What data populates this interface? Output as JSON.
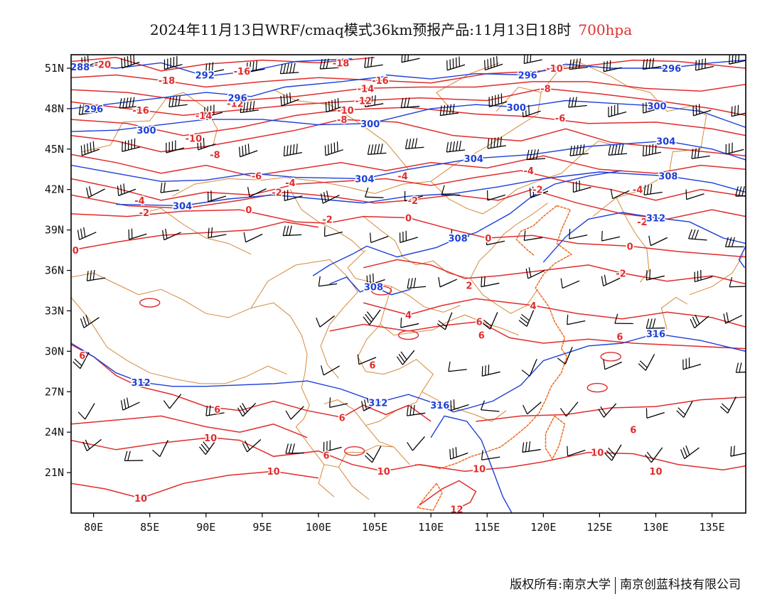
{
  "title": {
    "main": "2024年11月13日WRF/cmaq模式36km预报产品:11月13日18时",
    "level": "700hpa"
  },
  "colors": {
    "temperature_contour": "#e02c2c",
    "height_contour": "#1d3fd8",
    "border": "#d4893a",
    "coast": "#f06a1e",
    "wind_barb": "#000000"
  },
  "map": {
    "lon_range": [
      78,
      138
    ],
    "lat_range": [
      18,
      52
    ],
    "lat_ticks": [
      {
        "value": 21,
        "label": "21N"
      },
      {
        "value": 24,
        "label": "24N"
      },
      {
        "value": 27,
        "label": "27N"
      },
      {
        "value": 30,
        "label": "30N"
      },
      {
        "value": 33,
        "label": "33N"
      },
      {
        "value": 36,
        "label": "36N"
      },
      {
        "value": 39,
        "label": "39N"
      },
      {
        "value": 42,
        "label": "42N"
      },
      {
        "value": 45,
        "label": "45N"
      },
      {
        "value": 48,
        "label": "48N"
      },
      {
        "value": 51,
        "label": "51N"
      }
    ],
    "lon_ticks": [
      {
        "value": 80,
        "label": "80E"
      },
      {
        "value": 85,
        "label": "85E"
      },
      {
        "value": 90,
        "label": "90E"
      },
      {
        "value": 95,
        "label": "95E"
      },
      {
        "value": 100,
        "label": "100E"
      },
      {
        "value": 105,
        "label": "105E"
      },
      {
        "value": 110,
        "label": "110E"
      },
      {
        "value": 115,
        "label": "115E"
      },
      {
        "value": 120,
        "label": "120E"
      },
      {
        "value": 125,
        "label": "125E"
      },
      {
        "value": 130,
        "label": "130E"
      },
      {
        "value": 135,
        "label": "135E"
      }
    ],
    "temperature_labels": [
      {
        "text": "-20",
        "lon": 80.8,
        "lat": 51.3
      },
      {
        "text": "-18",
        "lon": 86.5,
        "lat": 50.1
      },
      {
        "text": "-16",
        "lon": 93.2,
        "lat": 50.8
      },
      {
        "text": "-18",
        "lon": 102.0,
        "lat": 51.4
      },
      {
        "text": "-16",
        "lon": 105.5,
        "lat": 50.1
      },
      {
        "text": "-14",
        "lon": 104.2,
        "lat": 49.5
      },
      {
        "text": "-12",
        "lon": 104.0,
        "lat": 48.6
      },
      {
        "text": "-10",
        "lon": 102.4,
        "lat": 47.9
      },
      {
        "text": "-8",
        "lon": 102.1,
        "lat": 47.2
      },
      {
        "text": "-16",
        "lon": 84.2,
        "lat": 47.9
      },
      {
        "text": "-14",
        "lon": 89.8,
        "lat": 47.5
      },
      {
        "text": "-12",
        "lon": 92.6,
        "lat": 48.4
      },
      {
        "text": "-10",
        "lon": 88.9,
        "lat": 45.8
      },
      {
        "text": "-8",
        "lon": 90.8,
        "lat": 44.6
      },
      {
        "text": "-6",
        "lon": 94.5,
        "lat": 43.0
      },
      {
        "text": "-4",
        "lon": 97.5,
        "lat": 42.5
      },
      {
        "text": "-4",
        "lon": 84.1,
        "lat": 41.2
      },
      {
        "text": "-2",
        "lon": 84.5,
        "lat": 40.3
      },
      {
        "text": "-2",
        "lon": 96.3,
        "lat": 41.8
      },
      {
        "text": "0",
        "lon": 93.8,
        "lat": 40.5
      },
      {
        "text": "-2",
        "lon": 100.8,
        "lat": 39.8
      },
      {
        "text": "-4",
        "lon": 107.5,
        "lat": 43.0
      },
      {
        "text": "-2",
        "lon": 108.4,
        "lat": 41.2
      },
      {
        "text": "0",
        "lon": 108.0,
        "lat": 39.9
      },
      {
        "text": "-10",
        "lon": 121.0,
        "lat": 51.0
      },
      {
        "text": "-8",
        "lon": 120.2,
        "lat": 49.5
      },
      {
        "text": "-6",
        "lon": 121.5,
        "lat": 47.3
      },
      {
        "text": "-4",
        "lon": 118.7,
        "lat": 43.4
      },
      {
        "text": "-2",
        "lon": 119.5,
        "lat": 42.0
      },
      {
        "text": "-4",
        "lon": 128.4,
        "lat": 42.0
      },
      {
        "text": "-2",
        "lon": 128.8,
        "lat": 39.6
      },
      {
        "text": "0",
        "lon": 115.1,
        "lat": 38.4
      },
      {
        "text": "0",
        "lon": 127.7,
        "lat": 37.8
      },
      {
        "text": "-2",
        "lon": 126.9,
        "lat": 35.8
      },
      {
        "text": "0",
        "lon": 78.4,
        "lat": 37.5
      },
      {
        "text": "2",
        "lon": 113.4,
        "lat": 34.9
      },
      {
        "text": "4",
        "lon": 108.0,
        "lat": 32.7
      },
      {
        "text": "4",
        "lon": 119.1,
        "lat": 33.4
      },
      {
        "text": "6",
        "lon": 114.3,
        "lat": 32.2
      },
      {
        "text": "6",
        "lon": 126.8,
        "lat": 31.1
      },
      {
        "text": "6",
        "lon": 79.0,
        "lat": 29.7
      },
      {
        "text": "6",
        "lon": 104.8,
        "lat": 29.0
      },
      {
        "text": "6",
        "lon": 114.5,
        "lat": 31.2
      },
      {
        "text": "6",
        "lon": 91.0,
        "lat": 25.7
      },
      {
        "text": "6",
        "lon": 102.1,
        "lat": 25.1
      },
      {
        "text": "6",
        "lon": 128.0,
        "lat": 24.2
      },
      {
        "text": "6",
        "lon": 100.7,
        "lat": 22.3
      },
      {
        "text": "10",
        "lon": 90.4,
        "lat": 23.6
      },
      {
        "text": "10",
        "lon": 96.0,
        "lat": 21.1
      },
      {
        "text": "10",
        "lon": 105.8,
        "lat": 21.1
      },
      {
        "text": "10",
        "lon": 114.3,
        "lat": 21.3
      },
      {
        "text": "10",
        "lon": 124.8,
        "lat": 22.5
      },
      {
        "text": "10",
        "lon": 130.0,
        "lat": 21.1
      },
      {
        "text": "10",
        "lon": 84.2,
        "lat": 19.1
      },
      {
        "text": "12",
        "lon": 112.3,
        "lat": 18.3
      }
    ],
    "height_labels": [
      {
        "text": "288",
        "lon": 78.8,
        "lat": 51.1
      },
      {
        "text": "292",
        "lon": 89.9,
        "lat": 50.5
      },
      {
        "text": "296",
        "lon": 92.8,
        "lat": 48.8
      },
      {
        "text": "296",
        "lon": 80.0,
        "lat": 48.0
      },
      {
        "text": "300",
        "lon": 84.7,
        "lat": 46.4
      },
      {
        "text": "300",
        "lon": 104.6,
        "lat": 46.9
      },
      {
        "text": "296",
        "lon": 118.6,
        "lat": 50.5
      },
      {
        "text": "300",
        "lon": 117.6,
        "lat": 48.1
      },
      {
        "text": "296",
        "lon": 131.4,
        "lat": 51.0
      },
      {
        "text": "300",
        "lon": 130.1,
        "lat": 48.2
      },
      {
        "text": "304",
        "lon": 113.8,
        "lat": 44.3
      },
      {
        "text": "304",
        "lon": 130.9,
        "lat": 45.6
      },
      {
        "text": "304",
        "lon": 104.1,
        "lat": 42.8
      },
      {
        "text": "304",
        "lon": 87.9,
        "lat": 40.8
      },
      {
        "text": "308",
        "lon": 131.1,
        "lat": 43.0
      },
      {
        "text": "312",
        "lon": 130.0,
        "lat": 39.9
      },
      {
        "text": "308",
        "lon": 112.4,
        "lat": 38.4
      },
      {
        "text": "308",
        "lon": 104.9,
        "lat": 34.8
      },
      {
        "text": "316",
        "lon": 130.0,
        "lat": 31.3
      },
      {
        "text": "312",
        "lon": 84.2,
        "lat": 27.7
      },
      {
        "text": "312",
        "lon": 105.3,
        "lat": 26.2
      },
      {
        "text": "316",
        "lon": 110.8,
        "lat": 26.0
      }
    ]
  },
  "footer": {
    "left": "版权所有:南京大学",
    "right": "南京创蓝科技有限公司"
  }
}
